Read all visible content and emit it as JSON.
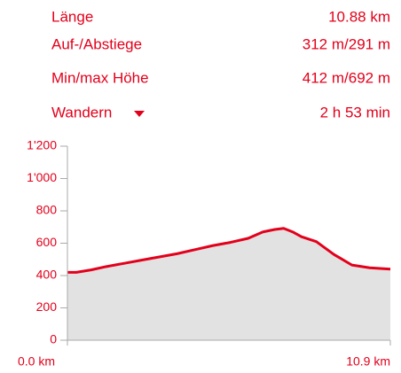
{
  "stats": [
    {
      "label": "Länge",
      "value": "10.88 km"
    },
    {
      "label": "Auf-/Abstiege",
      "value": "312 m/291 m"
    },
    {
      "label": "Min/max Höhe",
      "value": "412 m/692 m"
    },
    {
      "label": "Wandern",
      "value": "2 h 53 min"
    }
  ],
  "chart_data": {
    "type": "area",
    "x": [
      0,
      0.3,
      0.8,
      1.3,
      1.9,
      2.5,
      3.1,
      3.7,
      4.3,
      4.9,
      5.5,
      6.1,
      6.6,
      7.0,
      7.3,
      7.6,
      7.9,
      8.4,
      9.0,
      9.6,
      10.2,
      10.9
    ],
    "values": [
      420,
      420,
      435,
      455,
      475,
      495,
      515,
      535,
      560,
      585,
      605,
      630,
      670,
      685,
      692,
      670,
      640,
      610,
      530,
      465,
      448,
      440
    ],
    "xlim": [
      0,
      10.9
    ],
    "ylim": [
      0,
      1200
    ],
    "xticks": [
      {
        "value": 0,
        "label": "0.0 km"
      },
      {
        "value": 10.9,
        "label": "10.9 km"
      }
    ],
    "yticks": [
      0,
      200,
      400,
      600,
      800,
      {
        "value": 1000,
        "label": "1'000"
      },
      {
        "value": 1200,
        "label": "1'200"
      }
    ],
    "color": "#e3001b",
    "fill": "#e2e2e2"
  }
}
